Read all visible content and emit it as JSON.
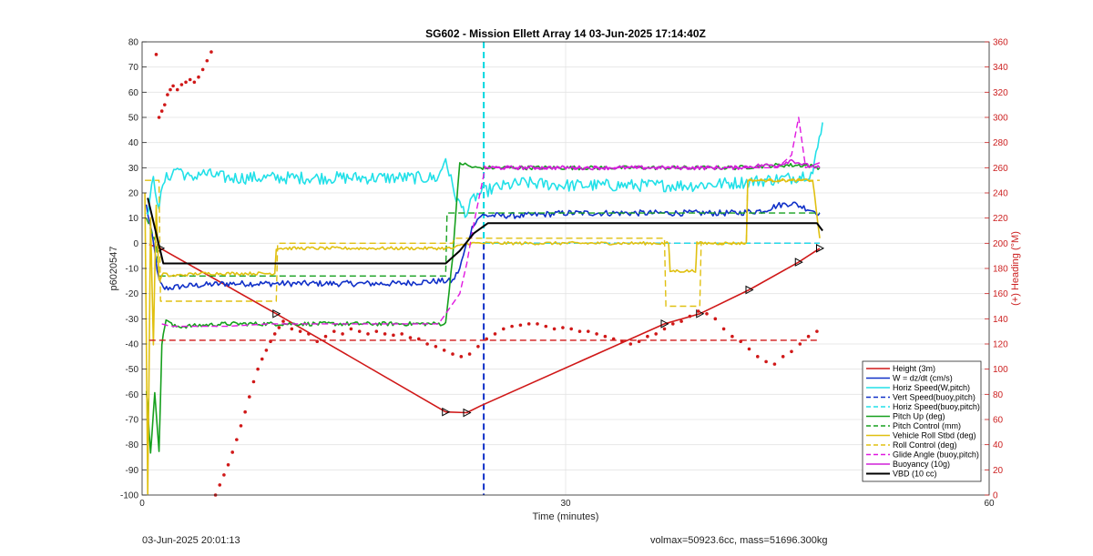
{
  "footer": {
    "timestamp": "03-Jun-2025 20:01:13",
    "summary": "volmax=50923.6cc, mass=51696.300kg"
  },
  "chart_data": {
    "type": "line",
    "title": "SG602 - Mission Ellett Array 14 03-Jun-2025 17:14:40Z",
    "xlabel": "Time (minutes)",
    "ylabel": "p6020547",
    "ylabel_right": "(+) Heading (°M)",
    "xlim": [
      0,
      60
    ],
    "ylim": [
      -100,
      80
    ],
    "ylim_right": [
      0,
      360
    ],
    "xticks": [
      "0",
      "30",
      "60"
    ],
    "xtick_values": [
      0,
      30,
      60
    ],
    "yticks": [
      80,
      70,
      60,
      50,
      40,
      30,
      20,
      10,
      0,
      -10,
      -20,
      -30,
      -40,
      -50,
      -60,
      -70,
      -80,
      -90,
      -100
    ],
    "yticks_right": [
      360,
      340,
      320,
      300,
      280,
      260,
      240,
      220,
      200,
      180,
      160,
      140,
      120,
      100,
      80,
      60,
      40,
      20,
      0
    ],
    "grid": true,
    "legend_position": "lower-right",
    "vlines": [
      {
        "x": 24.2,
        "color": "#00d8e0",
        "style": "dashed",
        "from": 0,
        "to": 80
      },
      {
        "x": 24.2,
        "color": "#1030c8",
        "style": "dashed",
        "from": -100,
        "to": 0
      }
    ],
    "series": [
      {
        "name": "Height (3m)",
        "color": "#d01818",
        "style": "solid",
        "width": 1.6,
        "x": [
          0.5,
          1.3,
          9.5,
          21.5,
          23.0,
          24.0,
          37.0,
          39.5,
          43.0,
          46.5,
          48.0
        ],
        "y": [
          -0.5,
          -2.0,
          -28.0,
          -67.0,
          -67.3,
          -64.5,
          -32.0,
          -28.0,
          -18.5,
          -7.5,
          -2.0
        ],
        "markers": [
          1.3,
          9.5,
          21.5,
          23.0,
          37.0,
          39.5,
          43.0,
          46.5,
          48.0
        ]
      },
      {
        "name": "W = dz/dt (cm/s)",
        "color": "#1030c8",
        "style": "solid",
        "width": 1.6,
        "x": [
          0.3,
          0.8,
          1.2,
          1.5,
          3,
          6,
          9,
          12,
          15,
          18,
          21,
          22,
          22.5,
          23,
          23.5,
          24,
          27,
          30,
          33,
          36,
          39,
          42,
          44,
          45,
          46,
          47,
          48
        ],
        "y": [
          15,
          0,
          -15,
          -18,
          -17,
          -16,
          -16,
          -16,
          -16,
          -16,
          -15,
          -15,
          -10,
          0,
          8,
          11,
          11,
          12,
          12,
          12,
          12,
          12,
          13,
          15,
          16,
          14,
          12
        ],
        "noise": 1.2
      },
      {
        "name": "Horiz Speed(W,pitch)",
        "color": "#22e0e8",
        "style": "solid",
        "width": 1.6,
        "x": [
          0.3,
          0.8,
          1.2,
          1.6,
          2.5,
          3.5,
          4,
          6,
          9,
          12,
          15,
          18,
          21,
          21.5,
          22,
          22.5,
          23,
          23.5,
          24,
          25,
          27,
          30,
          33,
          36,
          39,
          42,
          44,
          46,
          47.5,
          48.2
        ],
        "y": [
          10,
          25,
          15,
          25,
          30,
          25,
          28,
          26,
          26,
          26,
          26,
          26,
          26,
          34,
          22,
          15,
          12,
          18,
          20,
          22,
          24,
          23,
          23,
          23,
          23,
          24,
          25,
          26,
          28,
          48
        ],
        "noise": 2.5
      },
      {
        "name": "Vert Speed(buoy,pitch)",
        "color": "#1030c8",
        "style": "dashed",
        "width": 1.4,
        "x": [
          24.2,
          48
        ],
        "y": [
          0,
          0
        ]
      },
      {
        "name": "Horiz Speed(buoy,pitch)",
        "color": "#22e0e8",
        "style": "dashed",
        "width": 1.4,
        "x": [
          24.2,
          48
        ],
        "y": [
          0,
          0
        ]
      },
      {
        "name": "Pitch Up (deg)",
        "color": "#16a01e",
        "style": "solid",
        "width": 1.6,
        "x": [
          0.3,
          0.6,
          0.9,
          1.2,
          1.4,
          1.7,
          2.2,
          3,
          6,
          9,
          12,
          15,
          18,
          21.5,
          22.0,
          22.5,
          23.0,
          23.5,
          24,
          27,
          30,
          33,
          36,
          39,
          42,
          45,
          47,
          48
        ],
        "y": [
          -58,
          -83,
          -60,
          -82,
          -40,
          -30,
          -33,
          -33,
          -32,
          -32,
          -32,
          -32,
          -32,
          -32,
          -5,
          32,
          31,
          30,
          30,
          30,
          30,
          30,
          30,
          30,
          30,
          31,
          31,
          30
        ],
        "noise": 0.8
      },
      {
        "name": "Pitch Control (mm)",
        "color": "#16a01e",
        "style": "dashed",
        "width": 1.4,
        "x": [
          0.3,
          1.0,
          1.2,
          3,
          8,
          12,
          18,
          21.5,
          21.6,
          24,
          30,
          36,
          42,
          48
        ],
        "y": [
          10,
          0,
          -13,
          -13,
          -13,
          -13,
          -13,
          -13,
          12,
          12,
          12,
          12,
          12,
          12
        ]
      },
      {
        "name": "Vehicle Roll Stbd (deg)",
        "color": "#e0c010",
        "style": "solid",
        "width": 1.6,
        "x": [
          0.2,
          0.4,
          0.6,
          0.8,
          1.0,
          1.2,
          1.5,
          2,
          4,
          6,
          8,
          9.4,
          9.5,
          12,
          15,
          18,
          21,
          22,
          23,
          24,
          27,
          30,
          33,
          36,
          37.3,
          37.4,
          39.2,
          39.3,
          42,
          42.8,
          42.9,
          45,
          47.5,
          48
        ],
        "y": [
          20,
          -100,
          10,
          -40,
          15,
          -15,
          -12,
          -13,
          -12,
          -12,
          -12,
          -12,
          -2,
          -2,
          -2,
          -2,
          -2,
          -2,
          0,
          0,
          0,
          0,
          0,
          0,
          0,
          -11,
          -11,
          0,
          0,
          0,
          25,
          25,
          25,
          2
        ],
        "noise": 0.6
      },
      {
        "name": "Roll Control (deg)",
        "color": "#e0c010",
        "style": "dashed",
        "width": 1.4,
        "x": [
          0.2,
          1.2,
          1.3,
          9.5,
          9.6,
          22,
          22.1,
          37,
          37.1,
          39.5,
          39.6,
          42.8,
          42.9,
          48
        ],
        "y": [
          25,
          25,
          -23,
          -23,
          0,
          0,
          2,
          2,
          -25,
          -25,
          0,
          0,
          25,
          25
        ]
      },
      {
        "name": "Glide Angle (buoy,pitch)",
        "color": "#e018e0",
        "style": "dashed",
        "width": 1.4,
        "x": [
          1.4,
          2,
          3,
          6,
          9,
          12,
          15,
          18,
          21,
          22.5,
          23,
          23.5,
          24.3,
          25,
          27,
          30,
          33,
          36,
          39,
          42,
          45,
          46,
          46.5,
          47,
          48
        ],
        "y": [
          -32,
          -33,
          -33,
          -33,
          -32,
          -32,
          -32,
          -32,
          -32,
          -20,
          -8,
          8,
          30,
          30,
          30,
          30,
          30,
          30,
          30,
          30,
          30,
          35,
          50,
          30,
          32
        ]
      },
      {
        "name": "Buoyancy (10g)",
        "color": "#d020d8",
        "style": "solid",
        "width": 1.6,
        "x": [
          24.2,
          27,
          30,
          33,
          36,
          39,
          42,
          44,
          45,
          46,
          47,
          48
        ],
        "y": [
          30,
          30,
          30,
          30,
          30,
          30,
          30,
          31,
          31,
          33,
          31,
          30
        ],
        "noise": 0.8
      },
      {
        "name": "VBD (10 cc)",
        "color": "#000000",
        "style": "solid",
        "width": 2.0,
        "x": [
          0.4,
          1.5,
          5,
          10,
          15,
          20,
          21.5,
          22.5,
          23.5,
          24.5,
          30,
          36,
          42,
          47.8,
          48.2
        ],
        "y": [
          18,
          -8,
          -8,
          -8,
          -8,
          -8,
          -8,
          -3,
          4,
          8,
          8,
          8,
          8,
          8,
          5
        ]
      },
      {
        "name": "",
        "color": "#d01818",
        "style": "dots",
        "width": 0,
        "axis": "right",
        "x": [
          1.0,
          1.2,
          1.4,
          1.6,
          1.8,
          2.0,
          2.2,
          2.5,
          2.8,
          3.1,
          3.4,
          3.7,
          4.0,
          4.3,
          4.6,
          4.9,
          10.0,
          10.6,
          11.2,
          11.8,
          12.4,
          13.0,
          13.6,
          14.2,
          14.8,
          15.4,
          16.0,
          16.6,
          17.2,
          17.8,
          18.4,
          19.0,
          19.6,
          20.2,
          20.8,
          21.4,
          22.0,
          22.6,
          23.2,
          23.8,
          24.4,
          25.0,
          25.6,
          26.2,
          26.8,
          27.4,
          28.0,
          28.6,
          29.2,
          29.8,
          30.4,
          31.0,
          31.6,
          32.2,
          32.8,
          33.4,
          34.0,
          34.6,
          35.2,
          35.8,
          36.4,
          37.0,
          37.6,
          38.2,
          38.8,
          39.4,
          40.0,
          40.6,
          41.2,
          41.8,
          42.4,
          43.0,
          43.6,
          44.2,
          44.8,
          45.4,
          46.0,
          46.6,
          47.2,
          47.8
        ],
        "y": [
          350,
          300,
          305,
          310,
          318,
          322,
          325,
          322,
          326,
          328,
          330,
          328,
          332,
          338,
          345,
          352,
          138,
          132,
          130,
          128,
          122,
          126,
          130,
          128,
          132,
          130,
          128,
          130,
          128,
          127,
          128,
          125,
          124,
          120,
          118,
          115,
          112,
          110,
          112,
          118,
          124,
          128,
          132,
          134,
          135,
          136,
          136,
          134,
          132,
          133,
          132,
          130,
          130,
          128,
          126,
          124,
          122,
          120,
          122,
          126,
          128,
          132,
          136,
          138,
          142,
          146,
          144,
          140,
          132,
          126,
          122,
          116,
          110,
          106,
          104,
          110,
          114,
          120,
          126,
          130
        ]
      },
      {
        "name": "",
        "color": "#d01818",
        "style": "dots",
        "width": 0,
        "axis": "right",
        "x": [
          5.2,
          5.5,
          5.8,
          6.1,
          6.4,
          6.7,
          7.0,
          7.3,
          7.6,
          7.9,
          8.2,
          8.5,
          8.8,
          9.1,
          9.4,
          9.7
        ],
        "y": [
          0,
          8,
          16,
          24,
          34,
          44,
          55,
          66,
          78,
          90,
          100,
          108,
          115,
          122,
          128,
          133
        ]
      },
      {
        "name": "",
        "color": "#d01818",
        "style": "dashed",
        "width": 1.4,
        "axis": "right",
        "x": [
          0.5,
          48
        ],
        "y": [
          123,
          123
        ]
      }
    ]
  }
}
